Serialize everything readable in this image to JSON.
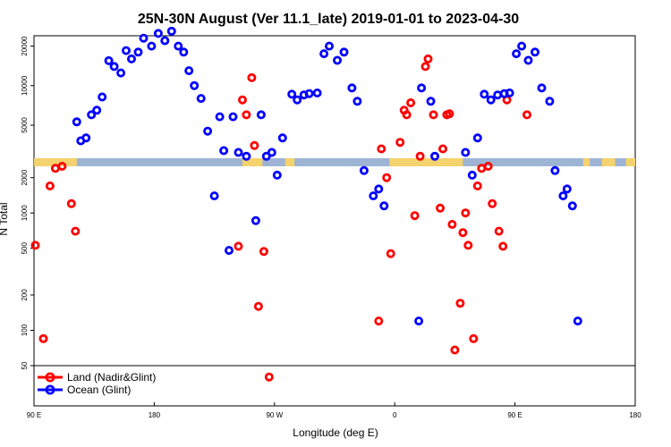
{
  "chart_data": {
    "type": "scatter",
    "title": "25N-30N August (Ver 11.1_late)   2019-01-01 to 2023-04-30",
    "xlabel": "Longitude (deg E)",
    "ylabel": "N Total",
    "x_ticks": [
      {
        "value": 90,
        "label": "90 E"
      },
      {
        "value": 180,
        "label": "180"
      },
      {
        "value": 270,
        "label": "90 W"
      },
      {
        "value": 360,
        "label": "0"
      },
      {
        "value": 450,
        "label": "90 E"
      },
      {
        "value": 540,
        "label": "180"
      }
    ],
    "xlim": [
      90,
      540
    ],
    "yscale": "broken-log",
    "lower_panel": {
      "ylim": [
        50,
        2500
      ],
      "ticks": [
        50,
        100,
        200,
        500,
        1000,
        2000
      ]
    },
    "upper_panel": {
      "ylim": [
        2800,
        24000
      ],
      "ticks": [
        5000,
        10000,
        20000
      ]
    },
    "legend": {
      "position": "bottom-left"
    },
    "band_colors": {
      "land": "#f4d26d",
      "ocean": "#9db4d4"
    },
    "land_segments": [
      [
        90,
        122
      ],
      [
        246,
        261
      ],
      [
        278,
        285
      ],
      [
        356,
        411
      ],
      [
        501,
        506
      ],
      [
        515,
        525
      ],
      [
        533,
        544
      ]
    ],
    "series": [
      {
        "name": "Land (Nadir&Glint)",
        "color": "#ff0000",
        "x": [
          91,
          97,
          102,
          106,
          111,
          118,
          121,
          243,
          246,
          249,
          253,
          255,
          258,
          262,
          266,
          348,
          350,
          354,
          357,
          364,
          367,
          369,
          372,
          375,
          379,
          383,
          385,
          389,
          394,
          396,
          399,
          401,
          403,
          405,
          409,
          411,
          413,
          415,
          419,
          422,
          425,
          430,
          433,
          438,
          441,
          444,
          459
        ],
        "y": [
          530,
          85,
          1700,
          2400,
          2500,
          1200,
          700,
          520,
          7800,
          6000,
          11500,
          3500,
          160,
          470,
          40,
          120,
          3300,
          2000,
          450,
          3700,
          6500,
          6000,
          7400,
          950,
          2900,
          14000,
          16000,
          6000,
          1100,
          3300,
          6000,
          6100,
          800,
          68,
          170,
          680,
          1000,
          530,
          85,
          1700,
          2400,
          2500,
          1200,
          700,
          520,
          7800,
          6000
        ]
      },
      {
        "name": "Ocean (Glint)",
        "color": "#0000ff",
        "x": [
          122,
          125,
          129,
          133,
          137,
          141,
          146,
          150,
          155,
          159,
          163,
          168,
          172,
          178,
          183,
          188,
          193,
          198,
          202,
          206,
          210,
          215,
          220,
          225,
          229,
          232,
          236,
          239,
          243,
          249,
          256,
          260,
          264,
          268,
          272,
          276,
          283,
          287,
          292,
          296,
          302,
          307,
          311,
          317,
          322,
          328,
          332,
          337,
          344,
          348,
          352,
          378,
          380,
          387,
          390,
          413,
          418,
          422,
          427,
          432,
          437,
          442,
          446,
          451,
          455,
          460,
          465,
          470,
          476,
          480,
          486,
          489,
          493,
          497
        ],
        "y": [
          5300,
          3800,
          4000,
          6000,
          6500,
          8200,
          15500,
          14000,
          12500,
          18500,
          16000,
          18000,
          23000,
          20000,
          25000,
          22000,
          26000,
          20000,
          18000,
          13000,
          10000,
          8000,
          4500,
          1400,
          5800,
          3200,
          480,
          5800,
          3100,
          2900,
          860,
          6000,
          2900,
          3100,
          2100,
          4000,
          8600,
          7800,
          8500,
          8700,
          8800,
          17500,
          20000,
          15600,
          18000,
          9600,
          7600,
          2300,
          1400,
          1600,
          1150,
          120,
          9600,
          7600,
          2900,
          3100,
          2100,
          4000,
          8600,
          7800,
          8500,
          8700,
          8800,
          17500,
          20000,
          15600,
          18000,
          9600,
          7600,
          2300,
          1400,
          1600,
          1150,
          120
        ]
      }
    ]
  }
}
